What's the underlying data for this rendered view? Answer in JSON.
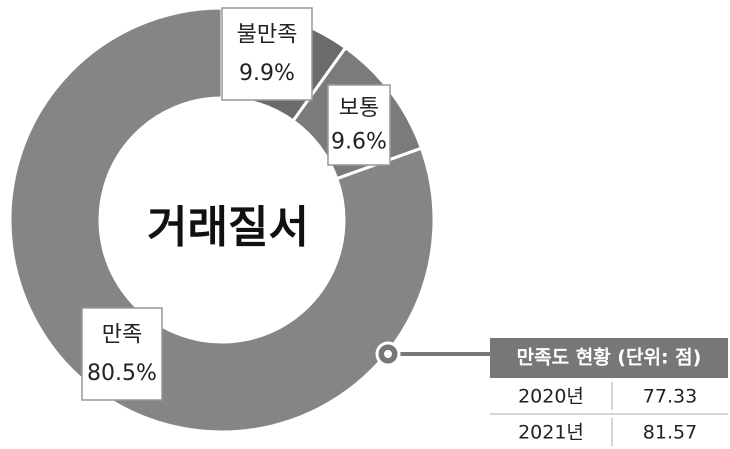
{
  "chart_data": {
    "type": "donut",
    "title": "거래질서",
    "categories": [
      "불만족",
      "보통",
      "만족"
    ],
    "values": [
      9.9,
      9.6,
      80.5
    ],
    "value_labels": [
      "9.9%",
      "9.6%",
      "80.5%"
    ],
    "colors": [
      "#6b6b6b",
      "#7b7b7b",
      "#858585"
    ]
  },
  "table": {
    "title": "만족도 현황 (단위: 점)",
    "rows": [
      [
        "2020년",
        "77.33"
      ],
      [
        "2021년",
        "81.57"
      ]
    ]
  }
}
